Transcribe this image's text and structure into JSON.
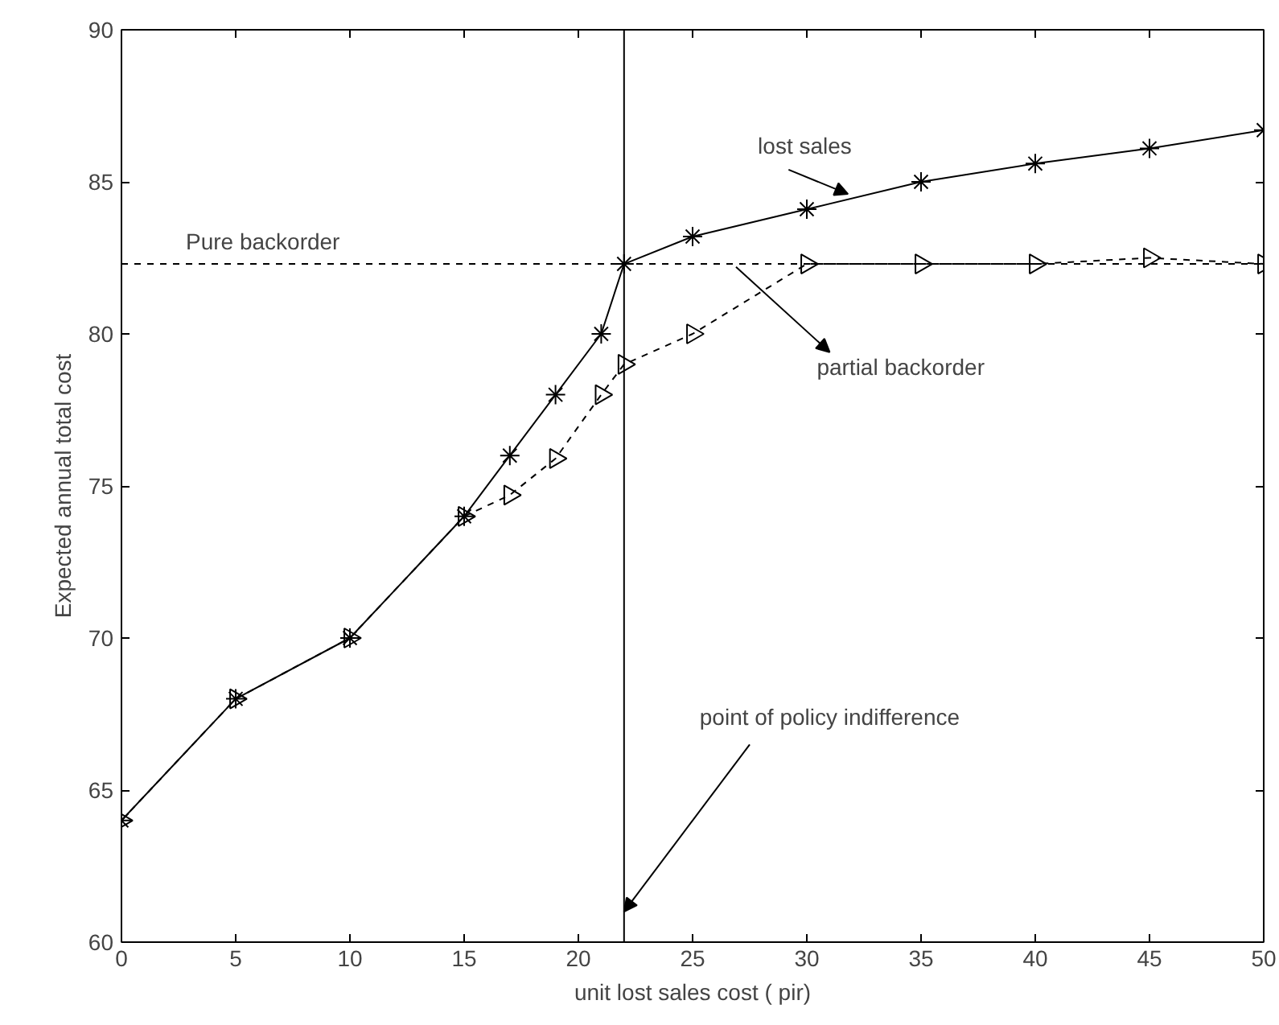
{
  "chart_data": {
    "type": "line",
    "xlabel": "unit lost sales cost ( pir)",
    "ylabel": "Expected annual total cost",
    "xlim": [
      0,
      50
    ],
    "ylim": [
      60,
      90
    ],
    "xticks": [
      0,
      5,
      10,
      15,
      20,
      25,
      30,
      35,
      40,
      45,
      50
    ],
    "yticks": [
      60,
      65,
      70,
      75,
      80,
      85,
      90
    ],
    "grid": false,
    "series": [
      {
        "color": "#000000",
        "marker": "cross",
        "line_style": "solid",
        "x": [
          0,
          5,
          10,
          15,
          17,
          19,
          21,
          22,
          25,
          30,
          35,
          40,
          45,
          50
        ],
        "values": [
          64,
          68,
          70,
          74,
          76,
          78,
          80,
          82.3,
          83.2,
          84.1,
          85,
          85.6,
          86.1,
          86.7
        ]
      },
      {
        "color": "#000000",
        "marker": "triangle",
        "line_style": "dashed",
        "x": [
          0,
          5,
          10,
          15,
          17,
          19,
          21,
          22,
          25,
          30,
          35,
          40,
          45,
          50
        ],
        "values": [
          64,
          68,
          70,
          74,
          74.7,
          75.9,
          78,
          79,
          80,
          82.3,
          82.3,
          82.3,
          82.5,
          82.3
        ]
      }
    ],
    "ref_lines": [
      {
        "axis": "y",
        "value": 82.3,
        "label": "Pure backorder",
        "line_style": "dashed",
        "color": "#000000"
      },
      {
        "axis": "x",
        "value": 22,
        "label": null,
        "line_style": "solid",
        "color": "#000000"
      }
    ],
    "annotations": [
      {
        "text": "lost sales",
        "x": 31.8,
        "y": 84.6
      },
      {
        "text": "partial backorder",
        "x": 26.9,
        "y": 82.2
      },
      {
        "text": "point of policy indifference",
        "x": 22,
        "y": 61
      }
    ]
  }
}
